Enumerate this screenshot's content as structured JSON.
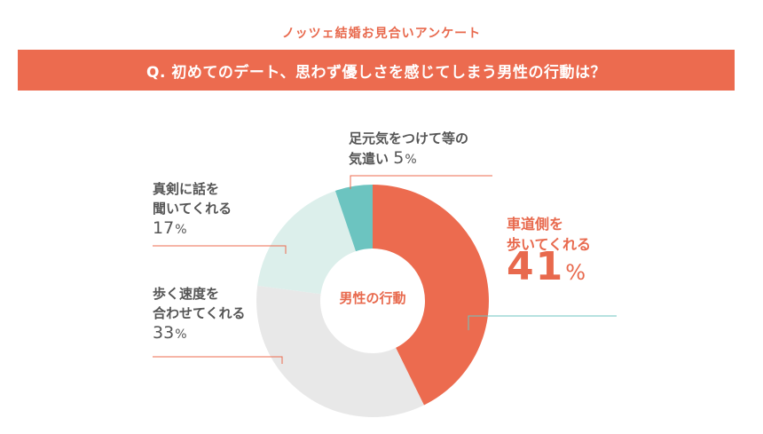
{
  "header": {
    "survey_label": "ノッツェ結婚お見合いアンケート",
    "question": "Q. 初めてのデート、思わず優しさを感じてしまう男性の行動は？"
  },
  "colors": {
    "accent": "#ec6b4f",
    "slice_main": "#ec6b4f",
    "slice_light_gray": "#e8e8e8",
    "slice_mint": "#dcefeb",
    "slice_teal": "#6cc4c0"
  },
  "chart_data": {
    "type": "pie",
    "center_label": "男性の行動",
    "categories": [
      "車道側を歩いてくれる",
      "歩く速度を合わせてくれる",
      "真剣に話を聞いてくれる",
      "足元気をつけて等の気遣い"
    ],
    "values": [
      41,
      33,
      17,
      5
    ],
    "labels": {
      "main": {
        "line1": "車道側を",
        "line2": "歩いてくれる",
        "value": "41",
        "unit": "%"
      },
      "speed": {
        "line1": "歩く速度を",
        "line2": "合わせてくれる",
        "value": "33",
        "unit": "%"
      },
      "listen": {
        "line1": "真剣に話を",
        "line2": "聞いてくれる",
        "value": "17",
        "unit": "%"
      },
      "care": {
        "line1": "足元気をつけて等の",
        "line2": "気遣い",
        "value": "5",
        "unit": "%"
      }
    }
  }
}
